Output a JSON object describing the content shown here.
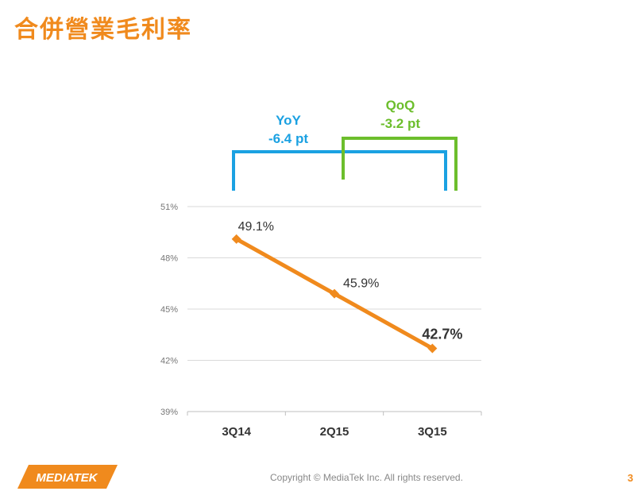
{
  "slide": {
    "title": "合併營業毛利率",
    "copyright": "Copyright © MediaTek Inc. All rights reserved.",
    "page_number": "3",
    "logo_text": "MEDIATEK"
  },
  "annotations": {
    "yoy_label": "YoY",
    "yoy_value": "-6.4 pt",
    "qoq_label": "QoQ",
    "qoq_value": "-3.2 pt"
  },
  "colors": {
    "accent": "#F08A1D",
    "line": "#F08A1D",
    "yoy": "#1BA1E2",
    "qoq": "#6CBE2C",
    "grid": "#D9D9D9"
  },
  "chart_data": {
    "type": "line",
    "categories": [
      "3Q14",
      "2Q15",
      "3Q15"
    ],
    "series": [
      {
        "values": [
          49.1,
          45.9,
          42.7
        ],
        "data_labels": [
          "49.1%",
          "45.9%",
          "42.7%"
        ]
      }
    ],
    "y_ticks": [
      "51%",
      "48%",
      "45%",
      "42%",
      "39%"
    ],
    "ylim": [
      39,
      51
    ],
    "grid": true,
    "title": "",
    "xlabel": "",
    "ylabel": ""
  }
}
